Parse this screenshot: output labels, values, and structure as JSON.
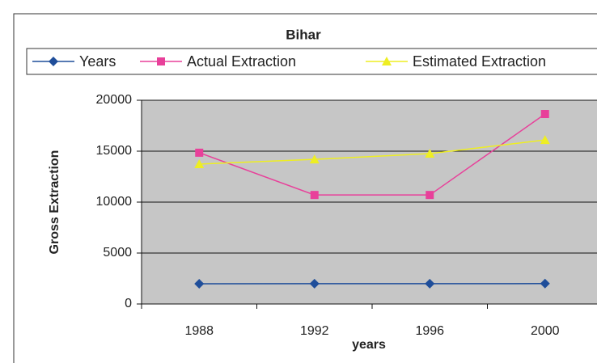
{
  "chart_data": {
    "type": "line",
    "title": "Bihar",
    "x_label": "years",
    "y_label": "Gross Extraction",
    "categories": [
      "1988",
      "1992",
      "1996",
      "2000"
    ],
    "series": [
      {
        "name": "Years",
        "color": "#1f4e9a",
        "marker": "diamond",
        "values": [
          1988,
          1992,
          1996,
          2000
        ]
      },
      {
        "name": "Actual Extraction",
        "color": "#e8409a",
        "marker": "square",
        "values": [
          14850,
          10700,
          10700,
          18650
        ]
      },
      {
        "name": "Estimated Extraction",
        "color": "#eeee22",
        "marker": "triangle",
        "values": [
          13730,
          14200,
          14760,
          16100
        ]
      }
    ],
    "ylim": [
      0,
      20000
    ],
    "yticks": [
      0,
      5000,
      10000,
      15000,
      20000
    ],
    "grid": true,
    "legend": "top"
  }
}
